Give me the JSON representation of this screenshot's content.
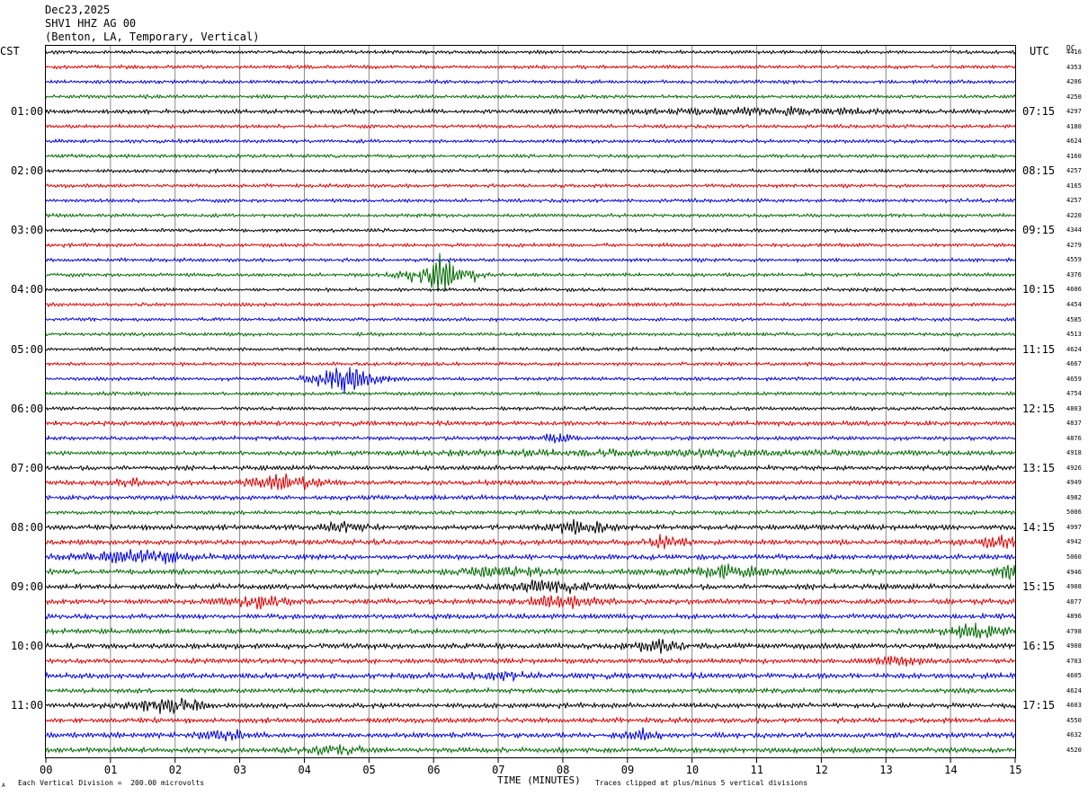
{
  "header": {
    "date": "Dec23,2025",
    "station": "SHV1 HHZ AG 00",
    "location": "(Benton, LA, Temporary, Vertical)"
  },
  "labels": {
    "left_timezone": "CST",
    "right_timezone": "UTC",
    "dc_label": "DC"
  },
  "footer": {
    "scale_note": "Each Vertical Division =  200.00 microvolts",
    "clip_note": "Traces clipped at plus/minus 5 vertical divisions",
    "corner_mark": "A"
  },
  "chart_data": {
    "type": "line",
    "title": "",
    "xlabel": "TIME (MINUTES)",
    "x_ticks": [
      "00",
      "01",
      "02",
      "03",
      "04",
      "05",
      "06",
      "07",
      "08",
      "09",
      "10",
      "11",
      "12",
      "13",
      "14",
      "15"
    ],
    "xlim": [
      0,
      15
    ],
    "left_hour_labels": [
      "01:00",
      "02:00",
      "03:00",
      "04:00",
      "05:00",
      "06:00",
      "07:00",
      "08:00",
      "09:00",
      "10:00",
      "11:00"
    ],
    "right_hour_labels": [
      "07:15",
      "08:15",
      "09:15",
      "10:15",
      "11:15",
      "12:15",
      "13:15",
      "14:15",
      "15:15",
      "16:15",
      "17:15"
    ],
    "trace_colors": [
      "#000000",
      "#e00000",
      "#0000e0",
      "#006a00"
    ],
    "trace_count": 48,
    "dc_offsets": [
      "4416",
      "4353",
      "4206",
      "4250",
      "4297",
      "4180",
      "4624",
      "4160",
      "4257",
      "4165",
      "4257",
      "4220",
      "4344",
      "4279",
      "4559",
      "4376",
      "4606",
      "4454",
      "4585",
      "4513",
      "4624",
      "4667",
      "4659",
      "4754",
      "4803",
      "4837",
      "4876",
      "4918",
      "4926",
      "4949",
      "4982",
      "5006",
      "4997",
      "4942",
      "5060",
      "4946",
      "4908",
      "4877",
      "4896",
      "4798",
      "4908",
      "4703",
      "4605",
      "4624",
      "4603",
      "4550",
      "4632",
      "4520"
    ],
    "events": [
      {
        "trace": 4,
        "minute": 11.0,
        "width_min": 2.5,
        "amplitude": 1.5
      },
      {
        "trace": 15,
        "minute": 6.1,
        "width_min": 0.6,
        "amplitude": 10
      },
      {
        "trace": 22,
        "minute": 4.6,
        "width_min": 0.6,
        "amplitude": 9
      },
      {
        "trace": 26,
        "minute": 7.9,
        "width_min": 0.3,
        "amplitude": 2.5
      },
      {
        "trace": 27,
        "minute": 9.5,
        "width_min": 4.5,
        "amplitude": 1.5
      },
      {
        "trace": 29,
        "minute": 3.7,
        "width_min": 0.7,
        "amplitude": 4
      },
      {
        "trace": 29,
        "minute": 1.3,
        "width_min": 0.4,
        "amplitude": 2
      },
      {
        "trace": 32,
        "minute": 4.6,
        "width_min": 0.5,
        "amplitude": 2.5
      },
      {
        "trace": 32,
        "minute": 8.3,
        "width_min": 0.6,
        "amplitude": 3
      },
      {
        "trace": 33,
        "minute": 9.6,
        "width_min": 0.4,
        "amplitude": 3
      },
      {
        "trace": 33,
        "minute": 14.7,
        "width_min": 0.5,
        "amplitude": 3
      },
      {
        "trace": 34,
        "minute": 1.4,
        "width_min": 1.0,
        "amplitude": 4
      },
      {
        "trace": 35,
        "minute": 7.1,
        "width_min": 0.9,
        "amplitude": 2.5
      },
      {
        "trace": 35,
        "minute": 10.5,
        "width_min": 0.8,
        "amplitude": 3
      },
      {
        "trace": 35,
        "minute": 14.9,
        "width_min": 0.3,
        "amplitude": 3.5
      },
      {
        "trace": 36,
        "minute": 7.7,
        "width_min": 0.8,
        "amplitude": 3.5
      },
      {
        "trace": 37,
        "minute": 3.3,
        "width_min": 0.6,
        "amplitude": 3.5
      },
      {
        "trace": 37,
        "minute": 8.0,
        "width_min": 0.7,
        "amplitude": 3
      },
      {
        "trace": 39,
        "minute": 14.4,
        "width_min": 0.5,
        "amplitude": 4
      },
      {
        "trace": 40,
        "minute": 9.4,
        "width_min": 0.6,
        "amplitude": 3
      },
      {
        "trace": 41,
        "minute": 13.2,
        "width_min": 0.4,
        "amplitude": 2.5
      },
      {
        "trace": 42,
        "minute": 7.1,
        "width_min": 0.5,
        "amplitude": 2
      },
      {
        "trace": 44,
        "minute": 1.9,
        "width_min": 0.6,
        "amplitude": 5
      },
      {
        "trace": 46,
        "minute": 2.8,
        "width_min": 0.5,
        "amplitude": 2.5
      },
      {
        "trace": 46,
        "minute": 9.2,
        "width_min": 0.4,
        "amplitude": 2.5
      },
      {
        "trace": 47,
        "minute": 4.4,
        "width_min": 0.7,
        "amplitude": 2.5
      }
    ],
    "background_noise": [
      1,
      1,
      1,
      1,
      1.2,
      1,
      1,
      1,
      1,
      1,
      1,
      1,
      1,
      1,
      1,
      1,
      1,
      1,
      1,
      1,
      1,
      1,
      1,
      1,
      1,
      1.3,
      1.1,
      1.1,
      1.3,
      1.3,
      1.3,
      1.1,
      1.5,
      1.5,
      1.5,
      1.5,
      1.5,
      1.5,
      1.4,
      1.4,
      1.5,
      1.4,
      1.6,
      1.3,
      1.4,
      1.4,
      1.4,
      1.4
    ]
  }
}
